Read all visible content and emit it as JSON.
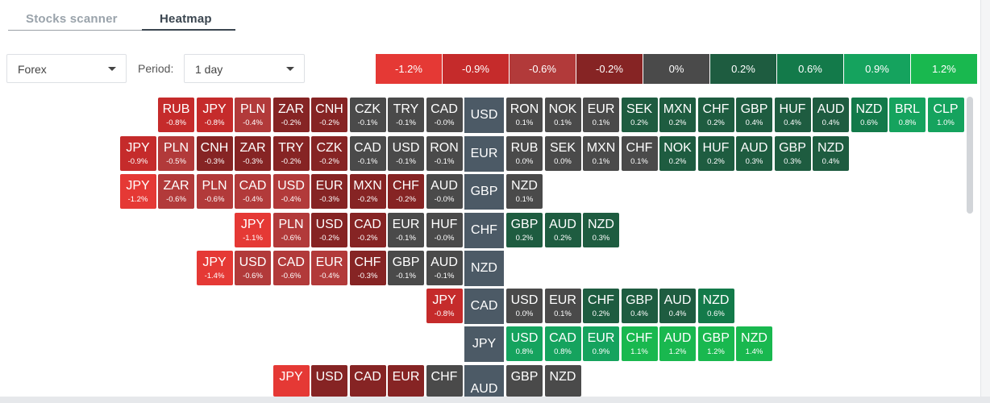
{
  "tabs": [
    {
      "label": "Stocks scanner",
      "active": false
    },
    {
      "label": "Heatmap",
      "active": true
    }
  ],
  "filters": {
    "market": "Forex",
    "period_label": "Period:",
    "period": "1 day"
  },
  "legend": [
    {
      "label": "-1.2%",
      "color": "#e53935"
    },
    {
      "label": "-0.9%",
      "color": "#c52b2b"
    },
    {
      "label": "-0.6%",
      "color": "#b23a3a"
    },
    {
      "label": "-0.2%",
      "color": "#862424"
    },
    {
      "label": "0%",
      "color": "#4a4a4a"
    },
    {
      "label": "0.2%",
      "color": "#1e5c40"
    },
    {
      "label": "0.6%",
      "color": "#137a4a"
    },
    {
      "label": "0.9%",
      "color": "#15a35e"
    },
    {
      "label": "1.2%",
      "color": "#19b84f"
    }
  ],
  "rows": [
    {
      "base": "USD",
      "left": [
        [
          "RUB",
          "-0.8%"
        ],
        [
          "JPY",
          "-0.8%"
        ],
        [
          "PLN",
          "-0.4%"
        ],
        [
          "ZAR",
          "-0.2%"
        ],
        [
          "CNH",
          "-0.2%"
        ],
        [
          "CZK",
          "-0.1%"
        ],
        [
          "TRY",
          "-0.1%"
        ],
        [
          "CAD",
          "-0.0%"
        ]
      ],
      "right": [
        [
          "RON",
          "0.1%"
        ],
        [
          "NOK",
          "0.1%"
        ],
        [
          "EUR",
          "0.1%"
        ],
        [
          "SEK",
          "0.2%"
        ],
        [
          "MXN",
          "0.2%"
        ],
        [
          "CHF",
          "0.2%"
        ],
        [
          "GBP",
          "0.4%"
        ],
        [
          "HUF",
          "0.4%"
        ],
        [
          "AUD",
          "0.4%"
        ],
        [
          "NZD",
          "0.6%"
        ],
        [
          "BRL",
          "0.8%"
        ],
        [
          "CLP",
          "1.0%"
        ]
      ]
    },
    {
      "base": "EUR",
      "left": [
        [
          "JPY",
          "-0.9%"
        ],
        [
          "PLN",
          "-0.5%"
        ],
        [
          "CNH",
          "-0.3%"
        ],
        [
          "ZAR",
          "-0.3%"
        ],
        [
          "TRY",
          "-0.2%"
        ],
        [
          "CZK",
          "-0.2%"
        ],
        [
          "CAD",
          "-0.1%"
        ],
        [
          "USD",
          "-0.1%"
        ],
        [
          "RON",
          "-0.1%"
        ]
      ],
      "right": [
        [
          "RUB",
          "0.0%"
        ],
        [
          "SEK",
          "0.0%"
        ],
        [
          "MXN",
          "0.1%"
        ],
        [
          "CHF",
          "0.1%"
        ],
        [
          "NOK",
          "0.2%"
        ],
        [
          "HUF",
          "0.2%"
        ],
        [
          "AUD",
          "0.3%"
        ],
        [
          "GBP",
          "0.3%"
        ],
        [
          "NZD",
          "0.4%"
        ]
      ]
    },
    {
      "base": "GBP",
      "left": [
        [
          "JPY",
          "-1.2%"
        ],
        [
          "ZAR",
          "-0.6%"
        ],
        [
          "PLN",
          "-0.6%"
        ],
        [
          "CAD",
          "-0.4%"
        ],
        [
          "USD",
          "-0.4%"
        ],
        [
          "EUR",
          "-0.3%"
        ],
        [
          "MXN",
          "-0.2%"
        ],
        [
          "CHF",
          "-0.2%"
        ],
        [
          "AUD",
          "-0.0%"
        ]
      ],
      "right": [
        [
          "NZD",
          "0.1%"
        ]
      ]
    },
    {
      "base": "CHF",
      "left": [
        [
          "JPY",
          "-1.1%"
        ],
        [
          "PLN",
          "-0.6%"
        ],
        [
          "USD",
          "-0.2%"
        ],
        [
          "CAD",
          "-0.2%"
        ],
        [
          "EUR",
          "-0.1%"
        ],
        [
          "HUF",
          "-0.0%"
        ]
      ],
      "right": [
        [
          "GBP",
          "0.2%"
        ],
        [
          "AUD",
          "0.2%"
        ],
        [
          "NZD",
          "0.3%"
        ]
      ]
    },
    {
      "base": "NZD",
      "left": [
        [
          "JPY",
          "-1.4%"
        ],
        [
          "USD",
          "-0.6%"
        ],
        [
          "CAD",
          "-0.6%"
        ],
        [
          "EUR",
          "-0.4%"
        ],
        [
          "CHF",
          "-0.3%"
        ],
        [
          "GBP",
          "-0.1%"
        ],
        [
          "AUD",
          "-0.1%"
        ]
      ],
      "right": []
    },
    {
      "base": "CAD",
      "left": [
        [
          "JPY",
          "-0.8%"
        ]
      ],
      "right": [
        [
          "USD",
          "0.0%"
        ],
        [
          "EUR",
          "0.1%"
        ],
        [
          "CHF",
          "0.2%"
        ],
        [
          "GBP",
          "0.4%"
        ],
        [
          "AUD",
          "0.4%"
        ],
        [
          "NZD",
          "0.6%"
        ]
      ]
    },
    {
      "base": "JPY",
      "left": [],
      "right": [
        [
          "USD",
          "0.8%"
        ],
        [
          "CAD",
          "0.8%"
        ],
        [
          "EUR",
          "0.9%"
        ],
        [
          "CHF",
          "1.1%"
        ],
        [
          "AUD",
          "1.2%"
        ],
        [
          "GBP",
          "1.2%"
        ],
        [
          "NZD",
          "1.4%"
        ]
      ]
    },
    {
      "base": "AUD",
      "left": [
        [
          "JPY",
          ""
        ],
        [
          "USD",
          ""
        ],
        [
          "CAD",
          ""
        ],
        [
          "EUR",
          ""
        ],
        [
          "CHF",
          ""
        ]
      ],
      "right": [
        [
          "GBP",
          ""
        ],
        [
          "NZD",
          ""
        ]
      ]
    }
  ]
}
